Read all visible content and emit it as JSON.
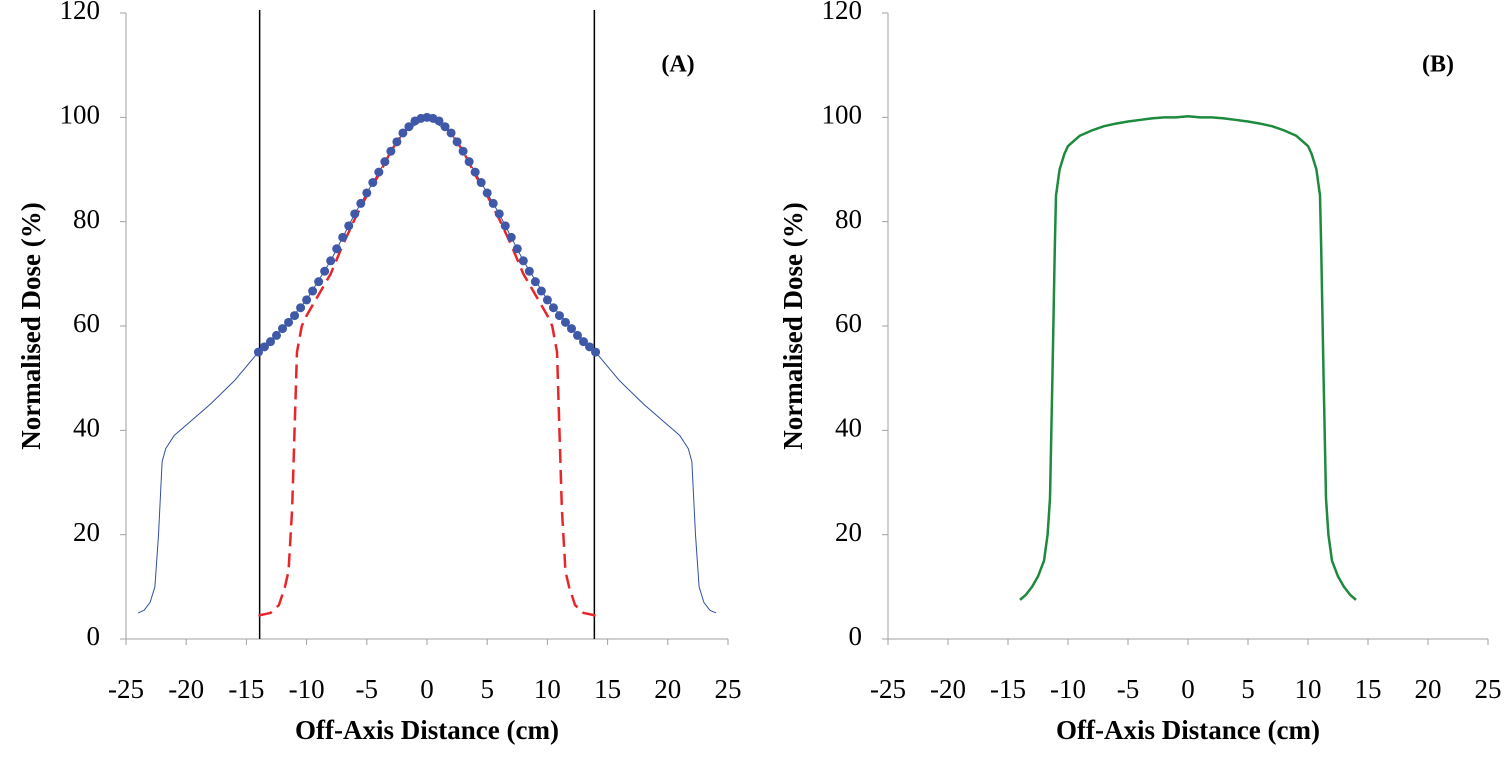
{
  "chart_data": [
    {
      "type": "line",
      "annotation": "(A)",
      "x_label": "Off-Axis Distance (cm)",
      "y_label": "Normalised Dose (%)",
      "xlim": [
        -25,
        25
      ],
      "ylim": [
        0,
        120
      ],
      "xticks": [
        -25,
        -20,
        -15,
        -10,
        -5,
        0,
        5,
        10,
        15,
        20,
        25
      ],
      "yticks": [
        0,
        20,
        40,
        60,
        80,
        100,
        120
      ],
      "vlines": [
        -13.9,
        13.9
      ],
      "vline_color": "#000000",
      "series": [
        {
          "color": "#3050a0",
          "style": "solid",
          "x": [
            -24,
            -23.5,
            -23,
            -22.6,
            -22.3,
            -22,
            -21.7,
            -21,
            -20,
            -18,
            -16,
            -14,
            -12,
            -10,
            -8,
            -6,
            -4,
            -2,
            0,
            2,
            4,
            6,
            8,
            10,
            12,
            14,
            16,
            18,
            20,
            21,
            21.7,
            22,
            22.3,
            22.6,
            23,
            23.5,
            24
          ],
          "values": [
            5,
            5.5,
            7,
            10,
            20,
            34,
            36.5,
            39,
            41,
            45,
            49.5,
            55,
            59.5,
            65,
            72.5,
            81.5,
            89.5,
            97,
            100,
            97,
            89.5,
            81.5,
            72.5,
            65,
            59.5,
            55,
            49.5,
            45,
            41,
            39,
            36.5,
            34,
            20,
            10,
            7,
            5.5,
            5
          ]
        },
        {
          "color": "#e8262a",
          "style": "dashed",
          "x": [
            -14,
            -13,
            -12.3,
            -11.8,
            -11.5,
            -11.2,
            -11,
            -10.8,
            -10.4,
            -10,
            -9,
            -8,
            -7,
            -6,
            -5,
            -4,
            -3,
            -2,
            -1,
            0,
            1,
            2,
            3,
            4,
            5,
            6,
            7,
            8,
            9,
            10,
            10.4,
            10.8,
            11,
            11.2,
            11.5,
            11.8,
            12.3,
            13,
            14
          ],
          "values": [
            4.5,
            5,
            6.5,
            10,
            13,
            25,
            40,
            55,
            60,
            62,
            66,
            70,
            75.5,
            80.5,
            85,
            89,
            93.5,
            97,
            99.3,
            100,
            99.3,
            97,
            93.5,
            89,
            85,
            80.5,
            75.5,
            70,
            66,
            62,
            60,
            55,
            40,
            25,
            13,
            10,
            6.5,
            5,
            4.5
          ]
        },
        {
          "color": "#3f58a8",
          "style": "markers",
          "x": [
            -14,
            -13.5,
            -13,
            -12.5,
            -12,
            -11.5,
            -11,
            -10.5,
            -10,
            -9.5,
            -9,
            -8.5,
            -8,
            -7.5,
            -7,
            -6.5,
            -6,
            -5.5,
            -5,
            -4.5,
            -4,
            -3.5,
            -3,
            -2.5,
            -2,
            -1.5,
            -1,
            -0.5,
            0,
            0.5,
            1,
            1.5,
            2,
            2.5,
            3,
            3.5,
            4,
            4.5,
            5,
            5.5,
            6,
            6.5,
            7,
            7.5,
            8,
            8.5,
            9,
            9.5,
            10,
            10.5,
            11,
            11.5,
            12,
            12.5,
            13,
            13.5,
            14
          ],
          "values": [
            55,
            56,
            57,
            58.2,
            59.5,
            60.7,
            62,
            63.5,
            65,
            66.7,
            68.5,
            70.5,
            72.5,
            74.8,
            77,
            79.2,
            81.5,
            83.5,
            85.5,
            87.5,
            89.5,
            91.5,
            93.5,
            95.3,
            97,
            98.2,
            99.3,
            99.8,
            100,
            99.8,
            99.3,
            98.2,
            97,
            95.3,
            93.5,
            91.5,
            89.5,
            87.5,
            85.5,
            83.5,
            81.5,
            79.2,
            77,
            74.8,
            72.5,
            70.5,
            68.5,
            66.7,
            65,
            63.5,
            62,
            60.7,
            59.5,
            58.2,
            57,
            56,
            55
          ]
        }
      ]
    },
    {
      "type": "line",
      "annotation": "(B)",
      "x_label": "Off-Axis Distance (cm)",
      "y_label": "Normalised Dose (%)",
      "xlim": [
        -25,
        25
      ],
      "ylim": [
        0,
        120
      ],
      "xticks": [
        -25,
        -20,
        -15,
        -10,
        -5,
        0,
        5,
        10,
        15,
        20,
        25
      ],
      "yticks": [
        0,
        20,
        40,
        60,
        80,
        100,
        120
      ],
      "series": [
        {
          "color": "#1e8a3e",
          "style": "solid",
          "x": [
            -14,
            -13.5,
            -13,
            -12.5,
            -12,
            -11.7,
            -11.5,
            -11.3,
            -11.1,
            -11,
            -10.7,
            -10.3,
            -10,
            -9,
            -8,
            -7,
            -6,
            -5,
            -4,
            -3,
            -2,
            -1,
            0,
            1,
            2,
            3,
            4,
            5,
            6,
            7,
            8,
            9,
            10,
            10.3,
            10.7,
            11,
            11.1,
            11.3,
            11.5,
            11.7,
            12,
            12.5,
            13,
            13.5,
            14
          ],
          "values": [
            7.5,
            8.5,
            10,
            12,
            15,
            20,
            27,
            50,
            75,
            85,
            90,
            93,
            94.5,
            96.5,
            97.5,
            98.3,
            98.8,
            99.2,
            99.5,
            99.8,
            100,
            100,
            100.2,
            100,
            100,
            99.8,
            99.5,
            99.2,
            98.8,
            98.3,
            97.5,
            96.5,
            94.5,
            93,
            90,
            85,
            75,
            50,
            27,
            20,
            15,
            12,
            10,
            8.5,
            7.5
          ]
        }
      ]
    }
  ]
}
